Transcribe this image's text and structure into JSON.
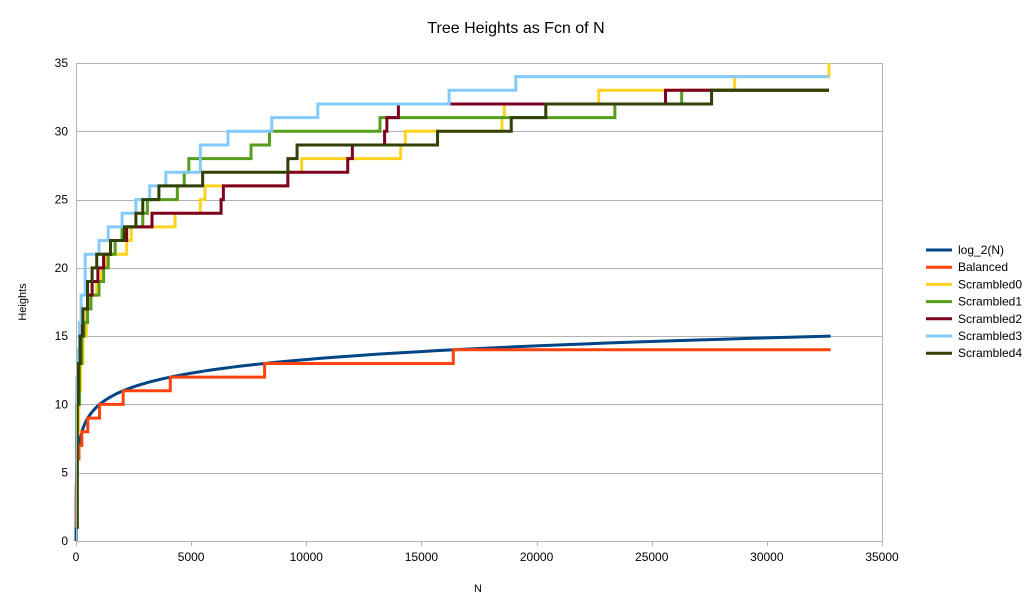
{
  "chart_data": {
    "type": "line",
    "title": "Tree Heights as Fcn of N",
    "xlabel": "N",
    "ylabel": "Heights",
    "xlim": [
      0,
      35000
    ],
    "ylim": [
      0,
      35
    ],
    "xticks": [
      0,
      5000,
      10000,
      15000,
      20000,
      25000,
      30000,
      35000
    ],
    "yticks": [
      0,
      5,
      10,
      15,
      20,
      25,
      30,
      35
    ],
    "x_tick_labels": [
      "0",
      "5000",
      "10000",
      "15000",
      "20000",
      "25000",
      "30000",
      "35000"
    ],
    "y_tick_labels": [
      "0",
      "5",
      "10",
      "15",
      "20",
      "25",
      "30",
      "35"
    ],
    "grid": "horizontal",
    "legend_position": "right",
    "series": [
      {
        "name": "log_2(N)",
        "color": "#004586",
        "kind": "log2",
        "x_max": 32767
      },
      {
        "name": "Balanced",
        "color": "#ff420e",
        "kind": "step",
        "points": [
          [
            1,
            1
          ],
          [
            3,
            2
          ],
          [
            7,
            3
          ],
          [
            15,
            4
          ],
          [
            31,
            5
          ],
          [
            63,
            6
          ],
          [
            127,
            7
          ],
          [
            255,
            8
          ],
          [
            511,
            9
          ],
          [
            1023,
            10
          ],
          [
            2047,
            11
          ],
          [
            4095,
            12
          ],
          [
            8191,
            13
          ],
          [
            16383,
            14
          ],
          [
            32767,
            14
          ]
        ]
      },
      {
        "name": "Scrambled0",
        "color": "#ffd320",
        "kind": "step",
        "points": [
          [
            1,
            1
          ],
          [
            50,
            8
          ],
          [
            120,
            11
          ],
          [
            200,
            13
          ],
          [
            300,
            15
          ],
          [
            450,
            17
          ],
          [
            600,
            18
          ],
          [
            900,
            19
          ],
          [
            1100,
            20
          ],
          [
            1300,
            21
          ],
          [
            2200,
            22
          ],
          [
            2400,
            23
          ],
          [
            4300,
            24
          ],
          [
            5400,
            25
          ],
          [
            5600,
            26
          ],
          [
            9200,
            27
          ],
          [
            9800,
            28
          ],
          [
            14100,
            29
          ],
          [
            14300,
            30
          ],
          [
            18500,
            31
          ],
          [
            18600,
            32
          ],
          [
            22700,
            33
          ],
          [
            28600,
            34
          ],
          [
            32700,
            35
          ]
        ]
      },
      {
        "name": "Scrambled1",
        "color": "#579d1c",
        "kind": "step",
        "points": [
          [
            1,
            1
          ],
          [
            60,
            10
          ],
          [
            150,
            13
          ],
          [
            250,
            15
          ],
          [
            350,
            16
          ],
          [
            500,
            17
          ],
          [
            650,
            18
          ],
          [
            1000,
            19
          ],
          [
            1200,
            20
          ],
          [
            1400,
            21
          ],
          [
            1700,
            22
          ],
          [
            2000,
            23
          ],
          [
            2900,
            24
          ],
          [
            3100,
            25
          ],
          [
            4400,
            26
          ],
          [
            4700,
            27
          ],
          [
            4900,
            28
          ],
          [
            7600,
            29
          ],
          [
            8400,
            30
          ],
          [
            13200,
            31
          ],
          [
            23400,
            32
          ],
          [
            26300,
            33
          ],
          [
            32700,
            33
          ]
        ]
      },
      {
        "name": "Scrambled2",
        "color": "#7e0021",
        "kind": "step",
        "points": [
          [
            1,
            1
          ],
          [
            40,
            11
          ],
          [
            100,
            13
          ],
          [
            180,
            15
          ],
          [
            260,
            17
          ],
          [
            500,
            18
          ],
          [
            700,
            19
          ],
          [
            950,
            20
          ],
          [
            1200,
            21
          ],
          [
            1500,
            22
          ],
          [
            2200,
            23
          ],
          [
            3300,
            24
          ],
          [
            6300,
            25
          ],
          [
            6400,
            26
          ],
          [
            9200,
            27
          ],
          [
            11800,
            28
          ],
          [
            12000,
            29
          ],
          [
            13400,
            30
          ],
          [
            13500,
            31
          ],
          [
            14000,
            32
          ],
          [
            25600,
            33
          ],
          [
            32700,
            33
          ]
        ]
      },
      {
        "name": "Scrambled3",
        "color": "#83caff",
        "kind": "step",
        "points": [
          [
            1,
            1
          ],
          [
            30,
            12
          ],
          [
            80,
            14
          ],
          [
            150,
            16
          ],
          [
            220,
            18
          ],
          [
            400,
            21
          ],
          [
            1000,
            22
          ],
          [
            1400,
            23
          ],
          [
            2000,
            24
          ],
          [
            2600,
            25
          ],
          [
            3200,
            26
          ],
          [
            3900,
            27
          ],
          [
            5400,
            29
          ],
          [
            6600,
            30
          ],
          [
            8500,
            31
          ],
          [
            10500,
            32
          ],
          [
            16200,
            33
          ],
          [
            19100,
            34
          ],
          [
            32700,
            34
          ]
        ]
      },
      {
        "name": "Scrambled4",
        "color": "#314004",
        "kind": "step",
        "points": [
          [
            1,
            1
          ],
          [
            50,
            10
          ],
          [
            100,
            13
          ],
          [
            180,
            15
          ],
          [
            300,
            17
          ],
          [
            500,
            19
          ],
          [
            700,
            20
          ],
          [
            900,
            21
          ],
          [
            1500,
            22
          ],
          [
            2100,
            23
          ],
          [
            2600,
            24
          ],
          [
            2900,
            25
          ],
          [
            3600,
            26
          ],
          [
            5500,
            27
          ],
          [
            9200,
            28
          ],
          [
            9600,
            29
          ],
          [
            15700,
            30
          ],
          [
            18900,
            31
          ],
          [
            20400,
            32
          ],
          [
            27600,
            33
          ],
          [
            32700,
            33
          ]
        ]
      }
    ]
  }
}
